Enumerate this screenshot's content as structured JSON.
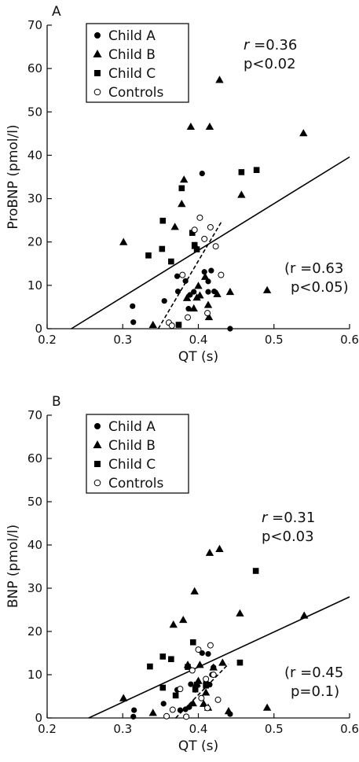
{
  "chart_data": [
    {
      "type": "scatter",
      "panel_label": "A",
      "xlabel": "QT (s)",
      "ylabel": "ProBNP (pmol/l)",
      "xlim": [
        0.2,
        0.6
      ],
      "ylim": [
        0,
        70
      ],
      "xticks": [
        0.2,
        0.3,
        0.4,
        0.5,
        0.6
      ],
      "yticks": [
        0,
        10,
        20,
        30,
        40,
        50,
        60,
        70
      ],
      "x_tick_labels": [
        "0.2",
        "0.3",
        "0.4",
        "0.5",
        "0.6"
      ],
      "y_tick_labels": [
        "0",
        "10",
        "20",
        "30",
        "40",
        "50",
        "60",
        "70"
      ],
      "legend": {
        "position": "top-left",
        "entries": [
          {
            "label": "Child A",
            "marker": "filled-circle"
          },
          {
            "label": "Child B",
            "marker": "filled-triangle"
          },
          {
            "label": "Child C",
            "marker": "filled-square"
          },
          {
            "label": "Controls",
            "marker": "open-circle"
          }
        ]
      },
      "annotations": {
        "all_r_prefix": "r",
        "all_r_value": " =0.36",
        "all_p": "p<0.02",
        "controls_r_prefix": "(r",
        "controls_r_value": " =0.63",
        "controls_p": "p<0.05)"
      },
      "series": [
        {
          "name": "Child A",
          "marker": "filled-circle",
          "x": [
            0.313,
            0.314,
            0.355,
            0.372,
            0.373,
            0.383,
            0.387,
            0.389,
            0.394,
            0.405,
            0.408,
            0.413,
            0.413,
            0.417,
            0.421,
            0.442
          ],
          "y": [
            5.2,
            1.5,
            6.4,
            12.1,
            8.6,
            11.0,
            4.6,
            7.8,
            8.5,
            35.8,
            13.1,
            10.9,
            8.5,
            13.4,
            8.6,
            0
          ]
        },
        {
          "name": "Child B",
          "marker": "filled-triangle",
          "x": [
            0.301,
            0.34,
            0.369,
            0.378,
            0.381,
            0.385,
            0.39,
            0.394,
            0.396,
            0.398,
            0.4,
            0.402,
            0.409,
            0.413,
            0.414,
            0.415,
            0.425,
            0.428,
            0.442,
            0.457,
            0.491,
            0.539
          ],
          "y": [
            20.0,
            0.9,
            23.5,
            28.8,
            34.4,
            7.1,
            46.6,
            4.7,
            19.1,
            7.2,
            9.9,
            7.7,
            12.0,
            5.5,
            2.7,
            46.6,
            8.0,
            57.4,
            8.5,
            30.9,
            8.9,
            45.1
          ]
        },
        {
          "name": "Child C",
          "marker": "filled-square",
          "x": [
            0.334,
            0.352,
            0.353,
            0.364,
            0.374,
            0.378,
            0.392,
            0.395,
            0.398,
            0.457,
            0.477
          ],
          "y": [
            16.9,
            18.4,
            24.9,
            15.5,
            0.9,
            32.4,
            22.1,
            19.3,
            18.3,
            36.1,
            36.6
          ]
        },
        {
          "name": "Controls",
          "marker": "open-circle",
          "x": [
            0.361,
            0.365,
            0.379,
            0.386,
            0.395,
            0.402,
            0.408,
            0.412,
            0.416,
            0.423,
            0.43
          ],
          "y": [
            1.4,
            0.7,
            12.4,
            2.6,
            22.8,
            25.6,
            20.7,
            3.6,
            23.4,
            19.0,
            12.4
          ]
        }
      ],
      "fit_lines": [
        {
          "style": "solid",
          "x": [
            0.232,
            0.6
          ],
          "y": [
            0,
            39.6
          ]
        },
        {
          "style": "dashed",
          "x": [
            0.347,
            0.43
          ],
          "y": [
            0,
            24.5
          ]
        }
      ]
    },
    {
      "type": "scatter",
      "panel_label": "B",
      "xlabel": "QT (s)",
      "ylabel": "BNP (pmol/l)",
      "xlim": [
        0.2,
        0.6
      ],
      "ylim": [
        0,
        70
      ],
      "xticks": [
        0.2,
        0.3,
        0.4,
        0.5,
        0.6
      ],
      "yticks": [
        0,
        10,
        20,
        30,
        40,
        50,
        60,
        70
      ],
      "x_tick_labels": [
        "0.2",
        "0.3",
        "0.4",
        "0.5",
        "0.6"
      ],
      "y_tick_labels": [
        "0",
        "10",
        "20",
        "30",
        "40",
        "50",
        "60",
        "70"
      ],
      "legend": {
        "position": "top-left",
        "entries": [
          {
            "label": "Child A",
            "marker": "filled-circle"
          },
          {
            "label": "Child B",
            "marker": "filled-triangle"
          },
          {
            "label": "Child C",
            "marker": "filled-square"
          },
          {
            "label": "Controls",
            "marker": "open-circle"
          }
        ]
      },
      "annotations": {
        "all_r_prefix": "r",
        "all_r_value": " =0.31",
        "all_p": "p<0.03",
        "controls_r_prefix": "(r",
        "controls_r_value": " =0.45",
        "controls_p": "p=0.1)"
      },
      "series": [
        {
          "name": "Child A",
          "marker": "filled-circle",
          "x": [
            0.314,
            0.315,
            0.354,
            0.372,
            0.376,
            0.383,
            0.388,
            0.39,
            0.396,
            0.405,
            0.41,
            0.413,
            0.415,
            0.418,
            0.42,
            0.442
          ],
          "y": [
            0.3,
            1.8,
            3.3,
            6.5,
            1.8,
            2.0,
            2.5,
            7.8,
            6.5,
            15.0,
            8.3,
            14.8,
            7.7,
            10.0,
            11.7,
            0.9
          ]
        },
        {
          "name": "Child B",
          "marker": "filled-triangle",
          "x": [
            0.301,
            0.34,
            0.367,
            0.38,
            0.386,
            0.393,
            0.395,
            0.398,
            0.4,
            0.402,
            0.407,
            0.41,
            0.413,
            0.415,
            0.42,
            0.428,
            0.432,
            0.44,
            0.455,
            0.491,
            0.54
          ],
          "y": [
            4.6,
            1.2,
            21.6,
            22.7,
            12.3,
            3.4,
            29.3,
            8.0,
            8.6,
            12.3,
            3.3,
            5.9,
            2.4,
            38.2,
            11.7,
            39.1,
            12.8,
            1.6,
            24.2,
            2.4,
            23.7
          ]
        },
        {
          "name": "Child C",
          "marker": "filled-square",
          "x": [
            0.336,
            0.353,
            0.353,
            0.364,
            0.37,
            0.386,
            0.393,
            0.396,
            0.398,
            0.41,
            0.455,
            0.476
          ],
          "y": [
            11.9,
            7.0,
            14.2,
            13.6,
            5.2,
            11.8,
            17.5,
            6.6,
            7.7,
            7.5,
            12.8,
            34.0
          ]
        },
        {
          "name": "Controls",
          "marker": "open-circle",
          "x": [
            0.358,
            0.366,
            0.376,
            0.384,
            0.392,
            0.4,
            0.404,
            0.41,
            0.412,
            0.416,
            0.42,
            0.426
          ],
          "y": [
            0.4,
            1.9,
            6.7,
            0.3,
            11.0,
            15.8,
            4.6,
            9.0,
            2.3,
            16.8,
            10.0,
            4.2
          ]
        }
      ],
      "fit_lines": [
        {
          "style": "solid",
          "x": [
            0.255,
            0.6
          ],
          "y": [
            0,
            28.0
          ]
        },
        {
          "style": "dashed",
          "x": [
            0.37,
            0.44
          ],
          "y": [
            0,
            12.5
          ]
        }
      ]
    }
  ]
}
